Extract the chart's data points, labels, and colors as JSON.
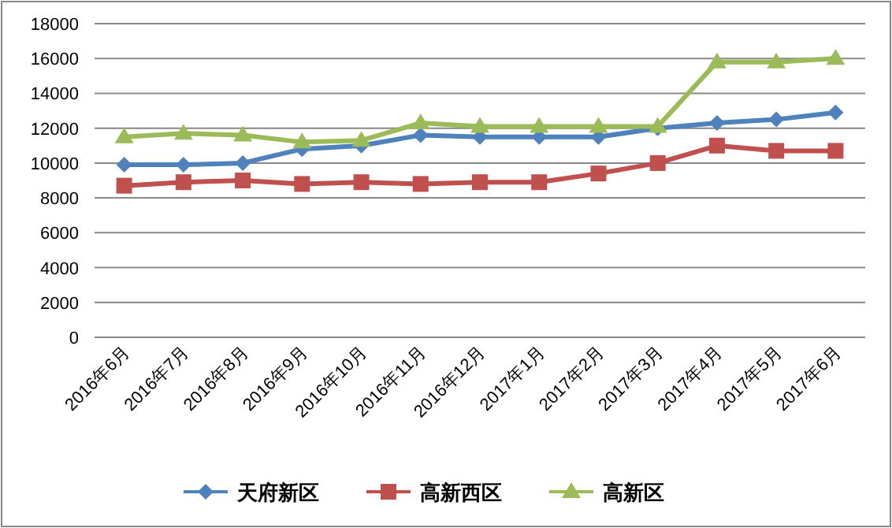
{
  "chart_data": {
    "type": "line",
    "categories": [
      "2016年6月",
      "2016年7月",
      "2016年8月",
      "2016年9月",
      "2016年10月",
      "2016年11月",
      "2016年12月",
      "2017年1月",
      "2017年2月",
      "2017年3月",
      "2017年4月",
      "2017年5月",
      "2017年6月"
    ],
    "series": [
      {
        "name": "天府新区",
        "color": "#4f81bd",
        "marker": "diamond",
        "values": [
          9900,
          9900,
          10000,
          10800,
          11000,
          11600,
          11500,
          11500,
          11500,
          12000,
          12300,
          12500,
          12900
        ]
      },
      {
        "name": "高新西区",
        "color": "#c0504d",
        "marker": "square",
        "values": [
          8700,
          8900,
          9000,
          8800,
          8900,
          8800,
          8900,
          8900,
          9400,
          10000,
          11000,
          10700,
          10700
        ]
      },
      {
        "name": "高新区",
        "color": "#9bbb59",
        "marker": "triangle",
        "values": [
          11500,
          11700,
          11600,
          11200,
          11300,
          12300,
          12100,
          12100,
          12100,
          12100,
          15800,
          15800,
          16000
        ]
      }
    ],
    "ylim": [
      0,
      18000
    ],
    "yticks": [
      0,
      2000,
      4000,
      6000,
      8000,
      10000,
      12000,
      14000,
      16000,
      18000
    ],
    "grid": "y",
    "legend": "bottom",
    "line_style": "solid"
  }
}
